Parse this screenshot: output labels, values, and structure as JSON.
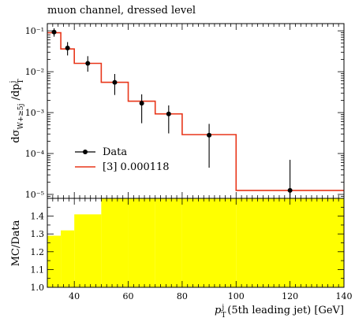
{
  "title": "muon channel, dressed level",
  "chart_data": [
    {
      "type": "line",
      "panel": "main",
      "title": "muon channel, dressed level",
      "ylabel": "dσ_{W+≥5j}/dp_T^j",
      "yscale": "log",
      "ylim": [
        8e-06,
        0.15
      ],
      "xlim": [
        30,
        140
      ],
      "x_ticks": [
        40,
        60,
        80,
        100,
        120,
        140
      ],
      "y_ticks": [
        {
          "value": 0.1,
          "label": "10⁻¹"
        },
        {
          "value": 0.01,
          "label": "10⁻²"
        },
        {
          "value": 0.001,
          "label": "10⁻³"
        },
        {
          "value": 0.0001,
          "label": "10⁻⁴"
        },
        {
          "value": 1e-05,
          "label": "10⁻⁵"
        }
      ],
      "legend": "bottom-left",
      "series": [
        {
          "name": "Data",
          "style": "points-with-errors",
          "color": "#000000",
          "x": [
            32.5,
            37.5,
            45,
            55,
            65,
            75,
            90,
            120
          ],
          "y": [
            0.093,
            0.038,
            0.016,
            0.0055,
            0.0017,
            0.00093,
            0.00028,
            1.25e-05
          ],
          "y_low": [
            0.072,
            0.025,
            0.01,
            0.0027,
            0.00055,
            0.00031,
            4.5e-05,
            3.5e-06
          ],
          "y_high": [
            0.115,
            0.053,
            0.024,
            0.0088,
            0.0028,
            0.0015,
            0.00053,
            7e-05
          ]
        },
        {
          "name": "[3] 0.000118",
          "style": "step",
          "color": "#e8361a",
          "bin_edges": [
            30,
            35,
            40,
            50,
            60,
            70,
            80,
            100,
            140
          ],
          "values": [
            0.09,
            0.036,
            0.016,
            0.0055,
            0.0019,
            0.00093,
            0.00029,
            1.25e-05
          ]
        }
      ]
    },
    {
      "type": "area",
      "panel": "ratio",
      "ylabel": "MC/Data",
      "xlabel": "p_T^j (5th leading jet) [GeV]",
      "xlim": [
        30,
        140
      ],
      "ylim": [
        1.0,
        1.5
      ],
      "x_ticks": [
        40,
        60,
        80,
        100,
        120,
        140
      ],
      "y_ticks": [
        1.0,
        1.1,
        1.2,
        1.3,
        1.4
      ],
      "band_color": "#ffff00",
      "band": {
        "bin_edges": [
          30,
          35,
          40,
          50,
          60,
          70,
          80,
          100,
          140
        ],
        "lower": [
          1.0,
          1.0,
          1.0,
          1.0,
          1.0,
          1.0,
          1.0,
          1.0
        ],
        "upper": [
          1.29,
          1.32,
          1.41,
          1.5,
          1.5,
          1.5,
          1.5,
          1.5
        ]
      }
    }
  ]
}
